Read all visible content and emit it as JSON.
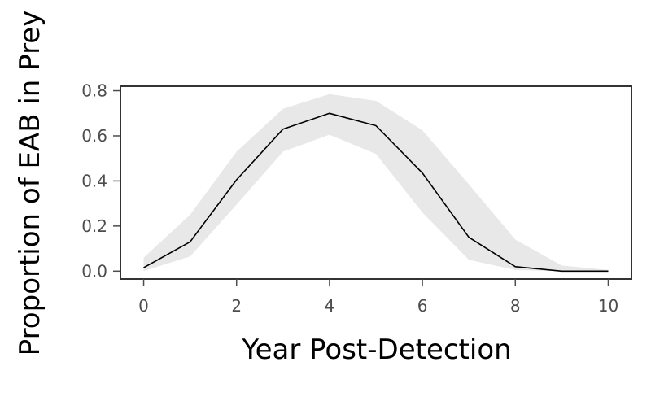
{
  "chart_data": {
    "type": "line",
    "title": "",
    "xlabel": "Year Post-Detection",
    "ylabel": "Proportion of EAB in Prey",
    "xlim": [
      -0.5,
      10.5
    ],
    "ylim": [
      -0.035,
      0.82
    ],
    "xticks": [
      0,
      2,
      4,
      6,
      8,
      10
    ],
    "xtick_labels": [
      "0",
      "2",
      "4",
      "6",
      "8",
      "10"
    ],
    "yticks": [
      0.0,
      0.2,
      0.4,
      0.6,
      0.8
    ],
    "ytick_labels": [
      "0.0",
      "0.2",
      "0.4",
      "0.6",
      "0.8"
    ],
    "grid": false,
    "legend": false,
    "series": [
      {
        "x": [
          0,
          1,
          2,
          3,
          4,
          5,
          6,
          7,
          8,
          9,
          10
        ],
        "values": [
          0.015,
          0.13,
          0.405,
          0.63,
          0.7,
          0.645,
          0.435,
          0.15,
          0.02,
          0.0,
          0.0
        ],
        "lower": [
          0.0,
          0.065,
          0.295,
          0.53,
          0.605,
          0.52,
          0.26,
          0.05,
          0.005,
          0.0,
          0.0
        ],
        "upper": [
          0.06,
          0.25,
          0.53,
          0.72,
          0.785,
          0.755,
          0.625,
          0.385,
          0.14,
          0.025,
          0.005
        ]
      }
    ],
    "colors": {
      "line": "#000000",
      "band": "#e8e8e8",
      "frame": "#333333",
      "tick": "#4d4d4d"
    }
  }
}
